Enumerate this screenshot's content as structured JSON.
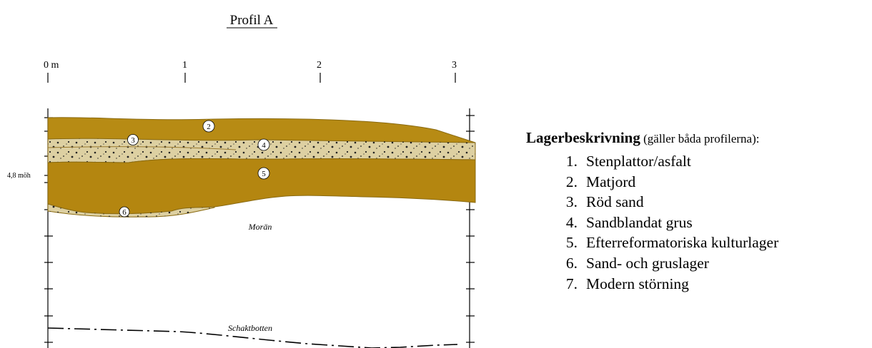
{
  "title": "Profil A",
  "scale": {
    "labels": [
      "0 m",
      "1",
      "2",
      "3"
    ]
  },
  "elevation_label": "4,8 möh",
  "layer_markers": [
    "2",
    "3",
    "4",
    "5",
    "6"
  ],
  "zone_labels": {
    "moran": "Morän",
    "schaktbotten": "Schaktbotten"
  },
  "legend": {
    "title": "Lagerbeskrivning",
    "note": " (gäller båda profilerna):",
    "items": [
      {
        "num": "1.",
        "label": "Stenplattor/asfalt"
      },
      {
        "num": "2.",
        "label": "Matjord"
      },
      {
        "num": "3.",
        "label": "Röd sand"
      },
      {
        "num": "4.",
        "label": "Sandblandat grus"
      },
      {
        "num": "5.",
        "label": "Efterreformatoriska kulturlager"
      },
      {
        "num": "6.",
        "label": "Sand- och gruslager"
      },
      {
        "num": "7.",
        "label": "Modern störning"
      }
    ]
  },
  "colors": {
    "matjord": "#b78b14",
    "sand_grus": "#ddd0a2",
    "kulturlager": "#b48610",
    "outline": "#8a6a10",
    "line": "#000000"
  }
}
